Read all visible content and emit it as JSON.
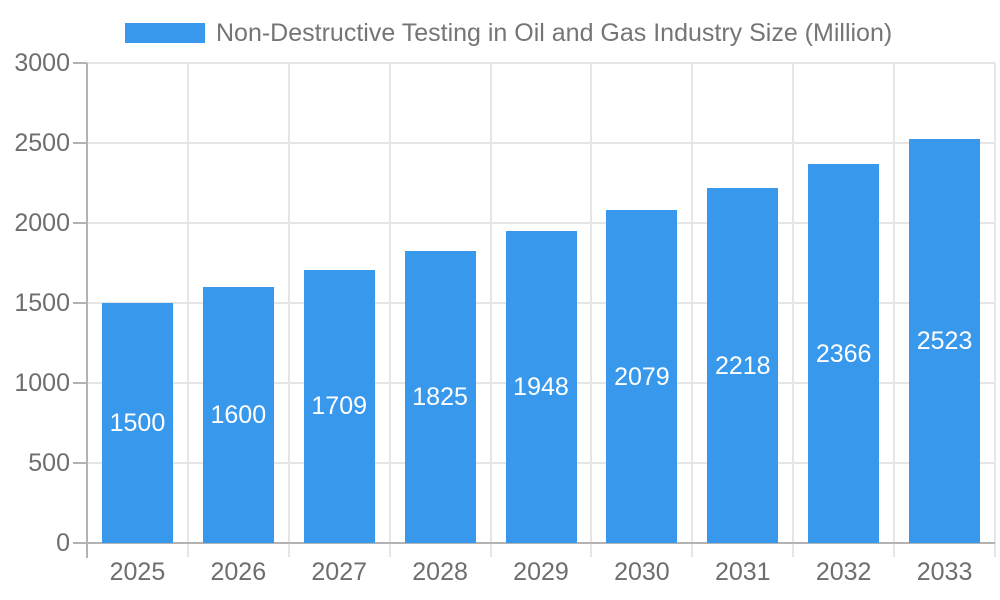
{
  "legend": {
    "label": "Non-Destructive Testing in Oil and Gas Industry Size (Million)"
  },
  "chart_data": {
    "type": "bar",
    "title": "Non-Destructive Testing in Oil and Gas Industry Size (Million)",
    "categories": [
      "2025",
      "2026",
      "2027",
      "2028",
      "2029",
      "2030",
      "2031",
      "2032",
      "2033"
    ],
    "values": [
      1500,
      1600,
      1709,
      1825,
      1948,
      2079,
      2218,
      2366,
      2523
    ],
    "series": [
      {
        "name": "Non-Destructive Testing in Oil and Gas Industry Size (Million)",
        "values": [
          1500,
          1600,
          1709,
          1825,
          1948,
          2079,
          2218,
          2366,
          2523
        ]
      }
    ],
    "xlabel": "",
    "ylabel": "",
    "ylim": [
      0,
      3000
    ],
    "yticks": [
      0,
      500,
      1000,
      1500,
      2000,
      2500,
      3000
    ],
    "grid": true,
    "legend_position": "top",
    "value_labels": "inside-center-white"
  },
  "colors": {
    "bar": "#3899EC",
    "gridline": "#E6E6E6",
    "axis_line": "#B3B3B3",
    "axis_text": "#6E6E6E",
    "legend_text": "#757575",
    "value_label": "#FFFFFF",
    "background": "#FFFFFF"
  }
}
